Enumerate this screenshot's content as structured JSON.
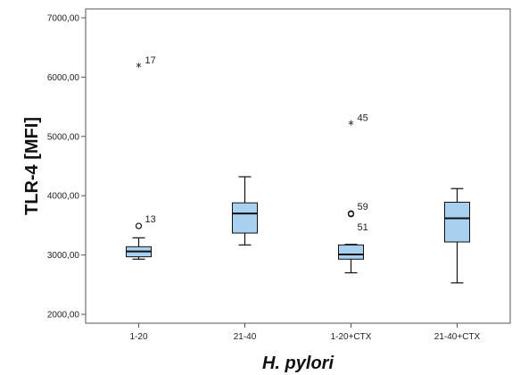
{
  "chart_data": {
    "type": "boxplot",
    "xlabel": "H. pylori",
    "ylabel": "TLR-4 [MFI]",
    "ylim": [
      1850,
      7150
    ],
    "yticks": [
      2000,
      3000,
      4000,
      5000,
      6000,
      7000
    ],
    "ytick_labels": [
      "2000,00",
      "3000,00",
      "4000,00",
      "5000,00",
      "6000,00",
      "7000,00"
    ],
    "categories": [
      "1-20",
      "21-40",
      "1-20+CTX",
      "21-40+CTX"
    ],
    "boxes": [
      {
        "category": "1-20",
        "whisker_low": 2930,
        "q1": 2970,
        "median": 3060,
        "q3": 3140,
        "whisker_high": 3290
      },
      {
        "category": "21-40",
        "whisker_low": 3170,
        "q1": 3370,
        "median": 3700,
        "q3": 3880,
        "whisker_high": 4320
      },
      {
        "category": "1-20+CTX",
        "whisker_low": 2700,
        "q1": 2930,
        "median": 3010,
        "q3": 3170,
        "whisker_high": 3180
      },
      {
        "category": "21-40+CTX",
        "whisker_low": 2530,
        "q1": 3220,
        "median": 3620,
        "q3": 3890,
        "whisker_high": 4120
      }
    ],
    "outliers": [
      {
        "category": "1-20",
        "value": 6170,
        "marker": "star",
        "label": "17"
      },
      {
        "category": "1-20",
        "value": 3490,
        "marker": "circle",
        "label": "13"
      },
      {
        "category": "1-20+CTX",
        "value": 5200,
        "marker": "star",
        "label": "45"
      },
      {
        "category": "1-20+CTX",
        "value": 3700,
        "marker": "circle",
        "label": "59"
      },
      {
        "category": "1-20+CTX",
        "value": 3690,
        "marker": "circle",
        "label": "51"
      }
    ],
    "colors": {
      "box_fill": "#a9d0ef",
      "line": "#111111",
      "axis": "#555555"
    },
    "grid": false
  }
}
